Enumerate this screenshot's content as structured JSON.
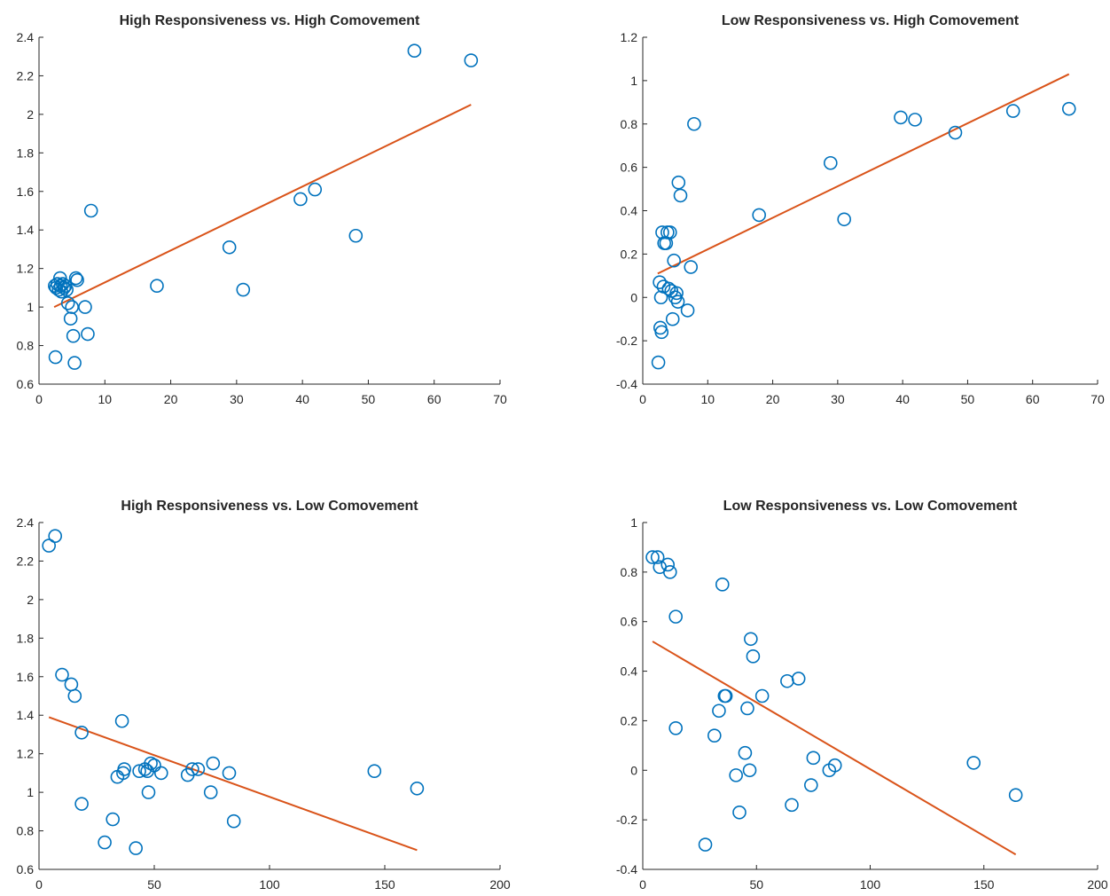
{
  "colors": {
    "marker": "#0072bd",
    "fit": "#d95319",
    "axis": "#262626"
  },
  "chart_data": [
    {
      "type": "scatter",
      "title": "High Responsiveness vs. High Comovement",
      "xlim": [
        0,
        70
      ],
      "ylim": [
        0.6,
        2.4
      ],
      "xticks": [
        0,
        10,
        20,
        30,
        40,
        50,
        60,
        70
      ],
      "yticks": [
        0.6,
        0.8,
        1,
        1.2,
        1.4,
        1.6,
        1.8,
        2,
        2.2,
        2.4
      ],
      "points": [
        [
          2.4,
          1.11
        ],
        [
          2.6,
          1.1
        ],
        [
          2.8,
          1.12
        ],
        [
          3.0,
          1.09
        ],
        [
          3.2,
          1.15
        ],
        [
          3.3,
          1.11
        ],
        [
          3.4,
          1.08
        ],
        [
          3.6,
          1.12
        ],
        [
          3.8,
          1.1
        ],
        [
          4.0,
          1.11
        ],
        [
          4.2,
          1.09
        ],
        [
          4.4,
          1.02
        ],
        [
          4.8,
          0.94
        ],
        [
          5.0,
          1.0
        ],
        [
          5.2,
          0.85
        ],
        [
          5.4,
          0.71
        ],
        [
          5.6,
          1.15
        ],
        [
          5.8,
          1.14
        ],
        [
          7.0,
          1.0
        ],
        [
          7.4,
          0.86
        ],
        [
          7.9,
          1.5
        ],
        [
          2.5,
          0.74
        ],
        [
          17.9,
          1.11
        ],
        [
          28.9,
          1.31
        ],
        [
          31.0,
          1.09
        ],
        [
          39.7,
          1.56
        ],
        [
          41.9,
          1.61
        ],
        [
          48.1,
          1.37
        ],
        [
          57.0,
          2.33
        ],
        [
          65.6,
          2.28
        ]
      ],
      "fit": [
        [
          2.3,
          1.0
        ],
        [
          65.6,
          2.05
        ]
      ]
    },
    {
      "type": "scatter",
      "title": "Low Responsiveness vs. High Comovement",
      "xlim": [
        0,
        70
      ],
      "ylim": [
        -0.4,
        1.2
      ],
      "xticks": [
        0,
        10,
        20,
        30,
        40,
        50,
        60,
        70
      ],
      "yticks": [
        -0.4,
        -0.2,
        0,
        0.2,
        0.4,
        0.6,
        0.8,
        1,
        1.2
      ],
      "points": [
        [
          2.4,
          -0.3
        ],
        [
          2.6,
          0.07
        ],
        [
          2.7,
          -0.14
        ],
        [
          2.8,
          0.0
        ],
        [
          2.9,
          -0.16
        ],
        [
          3.0,
          0.3
        ],
        [
          3.2,
          0.05
        ],
        [
          3.3,
          0.25
        ],
        [
          3.6,
          0.25
        ],
        [
          3.8,
          0.3
        ],
        [
          4.0,
          0.04
        ],
        [
          4.2,
          0.3
        ],
        [
          4.4,
          0.03
        ],
        [
          4.6,
          -0.1
        ],
        [
          4.8,
          0.17
        ],
        [
          5.0,
          0.0
        ],
        [
          5.2,
          0.02
        ],
        [
          5.4,
          -0.02
        ],
        [
          5.5,
          0.53
        ],
        [
          5.8,
          0.47
        ],
        [
          6.9,
          -0.06
        ],
        [
          7.4,
          0.14
        ],
        [
          7.9,
          0.8
        ],
        [
          17.9,
          0.38
        ],
        [
          28.9,
          0.62
        ],
        [
          31.0,
          0.36
        ],
        [
          39.7,
          0.83
        ],
        [
          41.9,
          0.82
        ],
        [
          48.1,
          0.76
        ],
        [
          57.0,
          0.86
        ],
        [
          65.6,
          0.87
        ]
      ],
      "fit": [
        [
          2.3,
          0.11
        ],
        [
          65.6,
          1.03
        ]
      ]
    },
    {
      "type": "scatter",
      "title": "High Responsiveness vs. Low Comovement",
      "xlim": [
        0,
        200
      ],
      "ylim": [
        0.6,
        2.4
      ],
      "xticks": [
        0,
        50,
        100,
        150,
        200
      ],
      "yticks": [
        0.6,
        0.8,
        1,
        1.2,
        1.4,
        1.6,
        1.8,
        2,
        2.2,
        2.4
      ],
      "points": [
        [
          4.3,
          2.28
        ],
        [
          7.0,
          2.33
        ],
        [
          10.0,
          1.61
        ],
        [
          14.0,
          1.56
        ],
        [
          15.5,
          1.5
        ],
        [
          18.5,
          1.31
        ],
        [
          18.5,
          0.94
        ],
        [
          28.5,
          0.74
        ],
        [
          32.0,
          0.86
        ],
        [
          34.0,
          1.08
        ],
        [
          36.0,
          1.37
        ],
        [
          36.5,
          1.1
        ],
        [
          37.0,
          1.12
        ],
        [
          42.0,
          0.71
        ],
        [
          43.5,
          1.11
        ],
        [
          46.0,
          1.12
        ],
        [
          47.0,
          1.11
        ],
        [
          47.5,
          1.0
        ],
        [
          48.5,
          1.15
        ],
        [
          50.0,
          1.14
        ],
        [
          53.0,
          1.1
        ],
        [
          64.5,
          1.09
        ],
        [
          66.5,
          1.12
        ],
        [
          69.0,
          1.12
        ],
        [
          74.5,
          1.0
        ],
        [
          75.5,
          1.15
        ],
        [
          82.5,
          1.1
        ],
        [
          84.5,
          0.85
        ],
        [
          145.5,
          1.11
        ],
        [
          164.0,
          1.02
        ]
      ],
      "fit": [
        [
          4.3,
          1.39
        ],
        [
          164.0,
          0.7
        ]
      ]
    },
    {
      "type": "scatter",
      "title": "Low Responsiveness vs. Low Comovement",
      "xlim": [
        0,
        200
      ],
      "ylim": [
        -0.4,
        1.0
      ],
      "xticks": [
        0,
        50,
        100,
        150,
        200
      ],
      "yticks": [
        -0.4,
        -0.2,
        0,
        0.2,
        0.4,
        0.6,
        0.8,
        1
      ],
      "points": [
        [
          4.3,
          0.86
        ],
        [
          6.5,
          0.86
        ],
        [
          7.5,
          0.82
        ],
        [
          11.0,
          0.83
        ],
        [
          12.0,
          0.8
        ],
        [
          14.5,
          0.62
        ],
        [
          14.5,
          0.17
        ],
        [
          27.5,
          -0.3
        ],
        [
          31.5,
          0.14
        ],
        [
          33.5,
          0.24
        ],
        [
          35.0,
          0.75
        ],
        [
          36.0,
          0.3
        ],
        [
          36.5,
          0.3
        ],
        [
          41.0,
          -0.02
        ],
        [
          42.5,
          -0.17
        ],
        [
          45.0,
          0.07
        ],
        [
          46.0,
          0.25
        ],
        [
          47.0,
          0.0
        ],
        [
          47.5,
          0.53
        ],
        [
          48.5,
          0.46
        ],
        [
          52.5,
          0.3
        ],
        [
          63.5,
          0.36
        ],
        [
          65.5,
          -0.14
        ],
        [
          68.5,
          0.37
        ],
        [
          74.0,
          -0.06
        ],
        [
          75.0,
          0.05
        ],
        [
          82.0,
          0.0
        ],
        [
          84.5,
          0.02
        ],
        [
          145.5,
          0.03
        ],
        [
          164.0,
          -0.1
        ]
      ],
      "fit": [
        [
          4.3,
          0.52
        ],
        [
          164.0,
          -0.34
        ]
      ]
    }
  ]
}
